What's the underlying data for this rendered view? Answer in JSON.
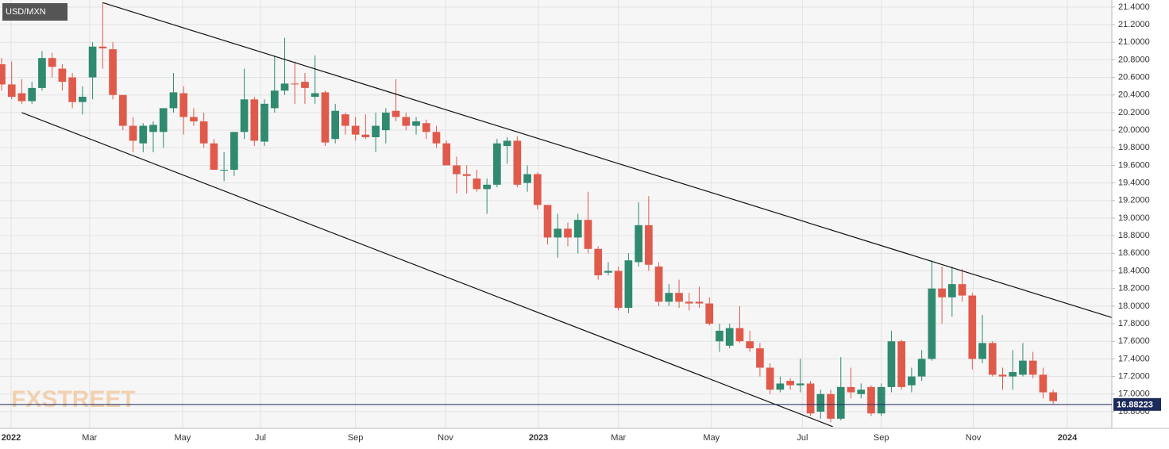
{
  "chart_data": {
    "type": "candlestick",
    "title": "USD/MXN",
    "watermark": "FXSTREET",
    "up_color": "#2f8a70",
    "down_color": "#e05a4b",
    "grid": true,
    "xlim": [
      -0.157,
      109.8
    ],
    "xticks": [
      {
        "value": 0.94,
        "label": "2022"
      },
      {
        "value": 8.7,
        "label": "Mar"
      },
      {
        "value": 17.9,
        "label": "May"
      },
      {
        "value": 25.6,
        "label": "Jul"
      },
      {
        "value": 35,
        "label": "Sep"
      },
      {
        "value": 43.9,
        "label": "Nov"
      },
      {
        "value": 53.1,
        "label": "2023"
      },
      {
        "value": 61,
        "label": "Mar"
      },
      {
        "value": 70.2,
        "label": "May"
      },
      {
        "value": 79.2,
        "label": "Jul"
      },
      {
        "value": 87,
        "label": "Sep"
      },
      {
        "value": 96.1,
        "label": "Nov"
      },
      {
        "value": 105.4,
        "label": "2024"
      }
    ],
    "ylim": [
      16.61,
      21.48
    ],
    "yticks": [
      {
        "value": 16.8,
        "label": "16.8000"
      },
      {
        "value": 17.0,
        "label": "17.0000"
      },
      {
        "value": 17.2,
        "label": "17.2000"
      },
      {
        "value": 17.4,
        "label": "17.4000"
      },
      {
        "value": 17.6,
        "label": "17.6000"
      },
      {
        "value": 17.8,
        "label": "17.8000"
      },
      {
        "value": 18.0,
        "label": "18.0000"
      },
      {
        "value": 18.2,
        "label": "18.2000"
      },
      {
        "value": 18.4,
        "label": "18.4000"
      },
      {
        "value": 18.6,
        "label": "18.6000"
      },
      {
        "value": 18.8,
        "label": "18.8000"
      },
      {
        "value": 19.0,
        "label": "19.0000"
      },
      {
        "value": 19.2,
        "label": "19.2000"
      },
      {
        "value": 19.4,
        "label": "19.4000"
      },
      {
        "value": 19.6,
        "label": "19.6000"
      },
      {
        "value": 19.8,
        "label": "19.8000"
      },
      {
        "value": 20.0,
        "label": "20.0000"
      },
      {
        "value": 20.2,
        "label": "20.2000"
      },
      {
        "value": 20.4,
        "label": "20.4000"
      },
      {
        "value": 20.6,
        "label": "20.6000"
      },
      {
        "value": 20.8,
        "label": "20.8000"
      },
      {
        "value": 21.0,
        "label": "21.0000"
      },
      {
        "value": 21.2,
        "label": "21.2000"
      },
      {
        "value": 21.4,
        "label": "21.4000"
      }
    ],
    "current_price": {
      "value": 16.88223,
      "label": "16.88223",
      "color": "#1d2a5c"
    },
    "trendlines": [
      {
        "x": [
          10,
          109.8
        ],
        "y": [
          21.45,
          17.87
        ]
      },
      {
        "x": [
          2,
          82.2
        ],
        "y": [
          20.2,
          16.63
        ]
      }
    ],
    "open": [
      20.75,
      20.52,
      20.42,
      20.33,
      20.48,
      20.82,
      20.7,
      20.6,
      20.32,
      20.6,
      20.95,
      20.92,
      20.4,
      20.05,
      19.85,
      19.98,
      19.98,
      20.25,
      20.42,
      20.15,
      20.1,
      19.85,
      19.55,
      19.55,
      19.98,
      20.35,
      19.87,
      20.25,
      20.45,
      20.53,
      20.55,
      20.38,
      20.43,
      19.9,
      20.18,
      20.05,
      19.95,
      19.92,
      20.0,
      20.22,
      20.15,
      20.05,
      20.08,
      19.98,
      19.85,
      19.6,
      19.5,
      19.45,
      19.33,
      19.38,
      19.82,
      19.88,
      19.4,
      19.5,
      19.15,
      18.78,
      18.88,
      18.78,
      18.98,
      18.65,
      18.38,
      18.4,
      17.98,
      18.5,
      18.92,
      18.45,
      18.05,
      18.15,
      18.05,
      18.05,
      18.03,
      17.6,
      17.55,
      17.75,
      17.6,
      17.52,
      17.3,
      17.05,
      17.15,
      17.1,
      17.12,
      16.8,
      17.0,
      16.72,
      17.08,
      17.0,
      17.08,
      16.78,
      17.08,
      17.6,
      17.1,
      17.2,
      17.4,
      18.2,
      18.1,
      18.25,
      18.12,
      17.4,
      17.58,
      17.22,
      17.2,
      17.22,
      17.38,
      17.22,
      17.02
    ],
    "high": [
      20.82,
      20.78,
      20.58,
      20.55,
      20.9,
      20.88,
      20.75,
      20.65,
      20.5,
      21.0,
      21.45,
      21.0,
      20.4,
      20.15,
      20.08,
      20.1,
      20.25,
      20.65,
      20.5,
      20.25,
      20.2,
      19.9,
      19.75,
      19.98,
      20.7,
      20.38,
      20.35,
      20.85,
      21.05,
      20.78,
      20.65,
      20.85,
      20.45,
      20.3,
      20.2,
      20.15,
      20.18,
      20.2,
      20.25,
      20.58,
      20.2,
      20.15,
      20.12,
      20.05,
      19.88,
      19.7,
      19.6,
      19.55,
      19.45,
      19.9,
      19.92,
      19.93,
      19.6,
      19.52,
      19.15,
      19.05,
      18.95,
      19.05,
      19.3,
      18.68,
      18.5,
      18.45,
      18.6,
      19.18,
      19.25,
      18.5,
      18.25,
      18.3,
      18.15,
      18.22,
      18.1,
      17.8,
      17.8,
      18.0,
      17.72,
      17.58,
      17.35,
      17.2,
      17.18,
      17.4,
      17.15,
      17.05,
      17.05,
      17.42,
      17.3,
      17.12,
      17.1,
      17.12,
      17.72,
      17.62,
      17.3,
      17.5,
      18.52,
      18.45,
      18.45,
      18.42,
      18.15,
      17.9,
      17.6,
      17.3,
      17.5,
      17.58,
      17.48,
      17.3,
      17.05
    ],
    "low": [
      20.45,
      20.35,
      20.3,
      20.3,
      20.45,
      20.6,
      20.45,
      20.25,
      20.18,
      20.35,
      20.7,
      20.35,
      20.0,
      19.75,
      19.75,
      19.75,
      19.8,
      20.2,
      19.95,
      20.05,
      19.8,
      19.55,
      19.42,
      19.48,
      19.9,
      19.82,
      19.82,
      20.2,
      20.4,
      20.3,
      20.3,
      20.3,
      19.82,
      19.85,
      19.95,
      19.88,
      19.9,
      19.75,
      19.85,
      20.1,
      20.0,
      19.95,
      19.9,
      19.8,
      19.6,
      19.28,
      19.28,
      19.3,
      19.05,
      19.35,
      19.62,
      19.35,
      19.3,
      19.1,
      18.7,
      18.55,
      18.68,
      18.6,
      18.6,
      18.3,
      18.35,
      17.95,
      17.92,
      18.45,
      18.4,
      18.0,
      18.0,
      17.98,
      17.95,
      17.98,
      17.78,
      17.48,
      17.52,
      17.58,
      17.48,
      17.2,
      17.0,
      17.02,
      17.05,
      17.02,
      16.75,
      16.72,
      16.68,
      16.7,
      16.95,
      16.95,
      16.75,
      16.75,
      17.02,
      17.05,
      17.02,
      17.15,
      17.38,
      17.8,
      17.88,
      18.05,
      17.28,
      17.35,
      17.2,
      17.05,
      17.05,
      17.2,
      17.18,
      16.95,
      16.88
    ],
    "close": [
      20.52,
      20.38,
      20.33,
      20.48,
      20.82,
      20.72,
      20.55,
      20.32,
      20.38,
      20.95,
      20.93,
      20.4,
      20.05,
      19.88,
      20.05,
      20.06,
      20.25,
      20.43,
      20.15,
      20.1,
      19.85,
      19.55,
      19.55,
      19.98,
      20.35,
      19.88,
      20.3,
      20.45,
      20.53,
      20.52,
      20.48,
      20.42,
      19.86,
      20.22,
      20.05,
      19.95,
      19.92,
      20.05,
      20.2,
      20.15,
      20.05,
      20.1,
      19.98,
      19.85,
      19.6,
      19.5,
      19.48,
      19.33,
      19.38,
      19.85,
      19.88,
      19.38,
      19.5,
      19.15,
      18.78,
      18.88,
      18.78,
      18.98,
      18.65,
      18.35,
      18.4,
      17.98,
      18.52,
      18.92,
      18.47,
      18.05,
      18.15,
      18.05,
      18.03,
      18.03,
      17.8,
      17.72,
      17.75,
      17.6,
      17.52,
      17.3,
      17.05,
      17.12,
      17.1,
      17.12,
      16.78,
      17.0,
      16.72,
      17.08,
      17.02,
      17.05,
      16.78,
      17.08,
      17.6,
      17.08,
      17.2,
      17.4,
      18.2,
      18.1,
      18.25,
      18.12,
      17.4,
      17.58,
      17.22,
      17.2,
      17.25,
      17.38,
      17.22,
      17.02,
      16.92
    ]
  }
}
